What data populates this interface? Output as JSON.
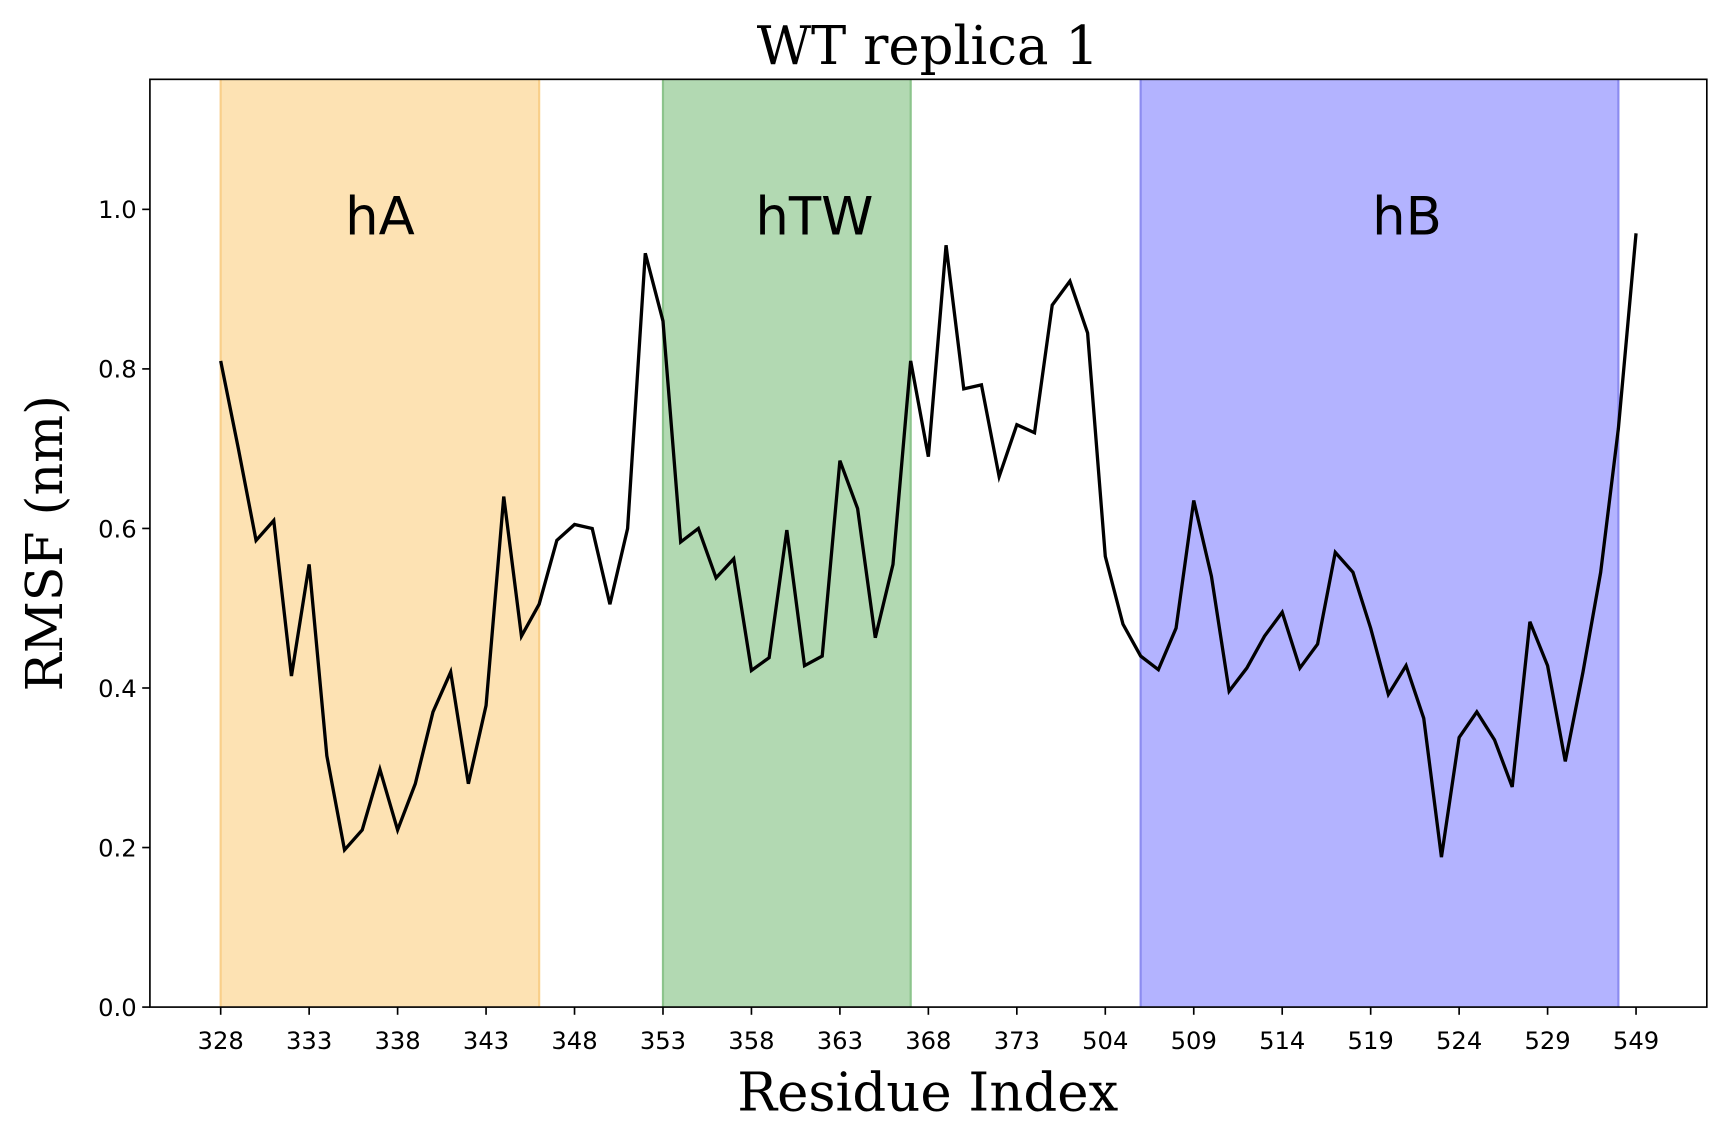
{
  "chart_data": {
    "type": "line",
    "title": "WT replica 1",
    "xlabel": "Residue Index",
    "ylabel": "RMSF (nm)",
    "categories": [
      "328",
      null,
      null,
      null,
      null,
      "333",
      null,
      null,
      null,
      null,
      "338",
      null,
      null,
      null,
      null,
      "343",
      null,
      null,
      null,
      null,
      "348",
      null,
      null,
      null,
      null,
      "353",
      null,
      null,
      null,
      null,
      "358",
      null,
      null,
      null,
      null,
      "363",
      null,
      null,
      null,
      null,
      "368",
      null,
      null,
      null,
      null,
      "373",
      null,
      null,
      null,
      null,
      "504",
      null,
      null,
      null,
      null,
      "509",
      null,
      null,
      null,
      null,
      "514",
      null,
      null,
      null,
      null,
      "519",
      null,
      null,
      null,
      null,
      "524",
      null,
      null,
      null,
      null,
      "529",
      null,
      null,
      null,
      null,
      "549"
    ],
    "series": [
      {
        "color": "#000000",
        "values": [
          0.81,
          0.7,
          0.585,
          0.61,
          0.415,
          0.555,
          0.315,
          0.197,
          0.222,
          0.298,
          0.222,
          0.28,
          0.37,
          0.42,
          0.28,
          0.378,
          0.64,
          0.465,
          0.505,
          0.585,
          0.605,
          0.6,
          0.505,
          0.6,
          0.945,
          0.86,
          0.583,
          0.6,
          0.538,
          0.562,
          0.422,
          0.438,
          0.598,
          0.428,
          0.44,
          0.685,
          0.625,
          0.463,
          0.555,
          0.81,
          0.69,
          0.955,
          0.775,
          0.78,
          0.665,
          0.73,
          0.72,
          0.88,
          0.91,
          0.845,
          0.565,
          0.48,
          0.44,
          0.423,
          0.475,
          0.635,
          0.54,
          0.396,
          0.425,
          0.465,
          0.495,
          0.425,
          0.455,
          0.57,
          0.545,
          0.475,
          0.392,
          0.428,
          0.362,
          0.188,
          0.338,
          0.37,
          0.335,
          0.276,
          0.483,
          0.428,
          0.308,
          0.42,
          0.545,
          0.725,
          0.97
        ]
      }
    ],
    "regions": [
      {
        "label": "hA",
        "x0": 0,
        "x1": 18,
        "color": "#fde2b3",
        "edge": "#f9cf8a"
      },
      {
        "label": "hTW",
        "x0": 25,
        "x1": 39,
        "color": "#b2d9b2",
        "edge": "#8cc48c"
      },
      {
        "label": "hB",
        "x0": 52,
        "x1": 79,
        "color": "#b3b3ff",
        "edge": "#8c8cf0"
      }
    ],
    "ylim": [
      0,
      1.163
    ],
    "yticks": [
      {
        "value": 0,
        "label": "0.0"
      },
      0.2,
      0.4,
      0.6,
      0.8,
      {
        "value": 1,
        "label": "1.0"
      }
    ],
    "grid": false
  }
}
